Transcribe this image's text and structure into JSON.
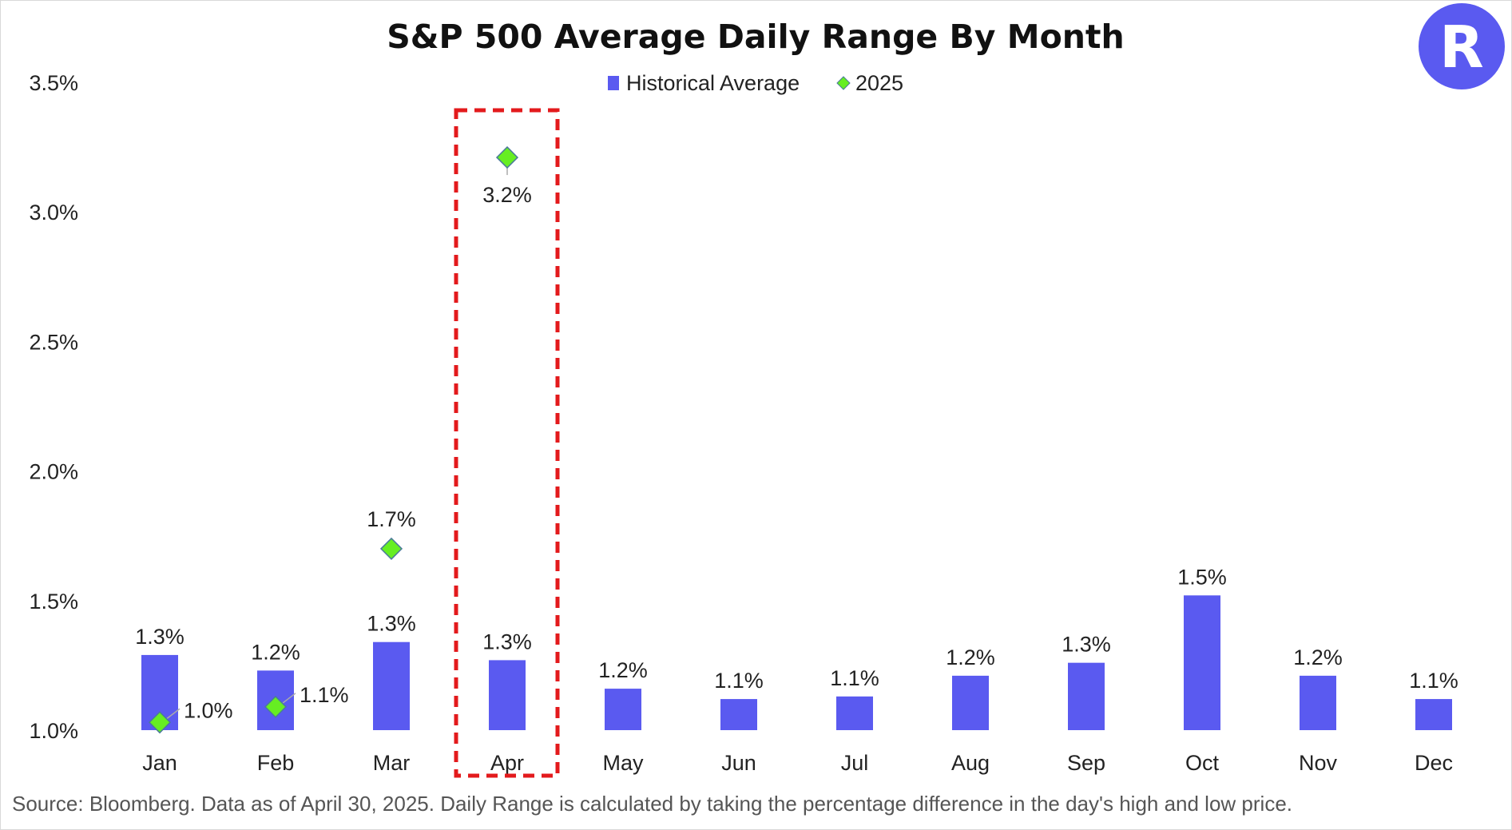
{
  "chart_data": {
    "type": "bar",
    "title": "S&P 500 Average Daily Range By Month",
    "categories": [
      "Jan",
      "Feb",
      "Mar",
      "Apr",
      "May",
      "Jun",
      "Jul",
      "Aug",
      "Sep",
      "Oct",
      "Nov",
      "Dec"
    ],
    "series": [
      {
        "name": "Historical Average",
        "type": "bar",
        "color": "#5a5af0",
        "values": [
          1.29,
          1.23,
          1.34,
          1.27,
          1.16,
          1.12,
          1.13,
          1.21,
          1.26,
          1.52,
          1.21,
          1.12
        ],
        "labels": [
          "1.3%",
          "1.2%",
          "1.3%",
          "1.3%",
          "1.2%",
          "1.1%",
          "1.1%",
          "1.2%",
          "1.3%",
          "1.5%",
          "1.2%",
          "1.1%"
        ]
      },
      {
        "name": "2025",
        "type": "scatter",
        "marker": "diamond",
        "color": "#66ee22",
        "values": [
          1.03,
          1.09,
          1.7,
          3.21,
          null,
          null,
          null,
          null,
          null,
          null,
          null,
          null
        ],
        "labels": [
          "1.0%",
          "1.1%",
          "1.7%",
          "3.2%",
          null,
          null,
          null,
          null,
          null,
          null,
          null,
          null
        ]
      }
    ],
    "ylim": [
      1.0,
      3.5
    ],
    "yticks": [
      1.0,
      1.5,
      2.0,
      2.5,
      3.0,
      3.5
    ],
    "ytick_labels": [
      "1.0%",
      "1.5%",
      "2.0%",
      "2.5%",
      "3.0%",
      "3.5%"
    ],
    "grid": false,
    "legend_position": "top-center",
    "highlight": {
      "category": "Apr",
      "style": "red dashed box"
    }
  },
  "source_note": "Source: Bloomberg. Data as of April 30, 2025. Daily Range is calculated by taking the percentage difference in the day's high and low price.",
  "colors": {
    "bar": "#5a5af0",
    "marker_fill": "#66ee22",
    "marker_stroke": "#4a7a9a",
    "highlight": "#e31a1c",
    "logo_bg": "#5a5af0"
  },
  "logo": {
    "letter": "R",
    "icon": "brand-logo-icon"
  }
}
